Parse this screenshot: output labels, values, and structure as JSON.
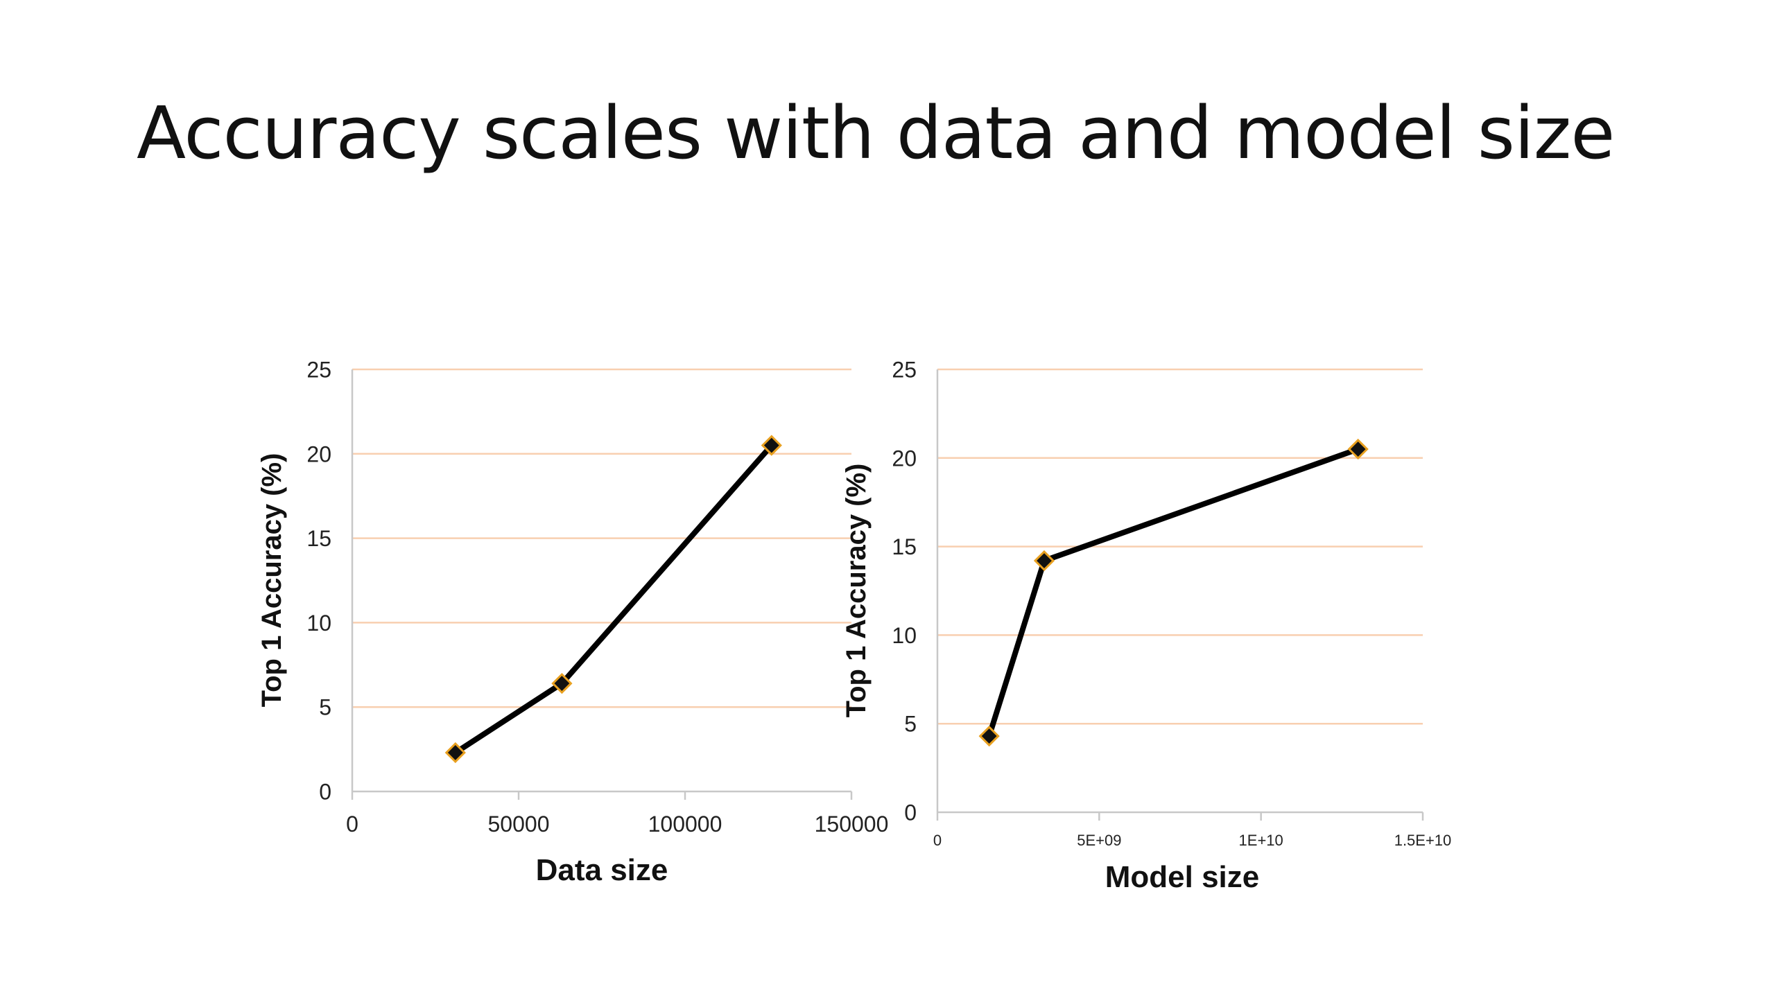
{
  "slide": {
    "title": "Accuracy scales with data and model size"
  },
  "colors": {
    "gridline": "#f8cfb0",
    "axis": "#c8c8c8",
    "series_line": "#000000",
    "marker_fill": "#111111",
    "marker_stroke": "#e8a020"
  },
  "chart_data": [
    {
      "type": "line",
      "title": "",
      "xlabel": "Data size",
      "ylabel": "Top 1 Accuracy (%)",
      "xlim": [
        0,
        150000
      ],
      "ylim": [
        0,
        25
      ],
      "x_ticks": [
        0,
        50000,
        100000,
        150000
      ],
      "x_tick_labels": [
        "0",
        "50000",
        "100000",
        "150000"
      ],
      "y_ticks": [
        0,
        5,
        10,
        15,
        20,
        25
      ],
      "y_tick_labels": [
        "0",
        "5",
        "10",
        "15",
        "20",
        "25"
      ],
      "grid": true,
      "series": [
        {
          "marker": "diamond",
          "points": [
            {
              "x": 31000,
              "y": 2.3
            },
            {
              "x": 63000,
              "y": 6.4
            },
            {
              "x": 126000,
              "y": 20.5
            }
          ]
        }
      ]
    },
    {
      "type": "line",
      "title": "",
      "xlabel": "Model size",
      "ylabel": "Top 1 Accuracy (%)",
      "xlim": [
        0,
        15000000000
      ],
      "ylim": [
        0,
        25
      ],
      "x_ticks": [
        0,
        5000000000,
        10000000000,
        15000000000
      ],
      "x_tick_labels": [
        "0",
        "5E+09",
        "1E+10",
        "1.5E+10"
      ],
      "y_ticks": [
        0,
        5,
        10,
        15,
        20,
        25
      ],
      "y_tick_labels": [
        "0",
        "5",
        "10",
        "15",
        "20",
        "25"
      ],
      "grid": true,
      "series": [
        {
          "marker": "diamond",
          "points": [
            {
              "x": 1600000000,
              "y": 4.3
            },
            {
              "x": 3300000000,
              "y": 14.2
            },
            {
              "x": 13000000000,
              "y": 20.5
            }
          ]
        }
      ]
    }
  ]
}
